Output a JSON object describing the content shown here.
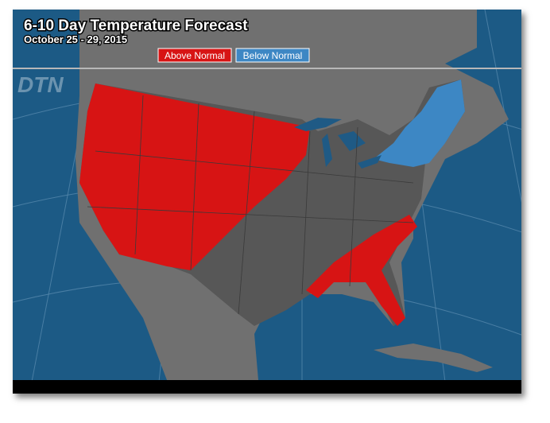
{
  "header": {
    "title": "6-10 Day Temperature Forecast",
    "subtitle": "October 25 - 29, 2015"
  },
  "legend": {
    "items": [
      "Above Normal",
      "Below Normal"
    ]
  },
  "logo": "DTN"
}
